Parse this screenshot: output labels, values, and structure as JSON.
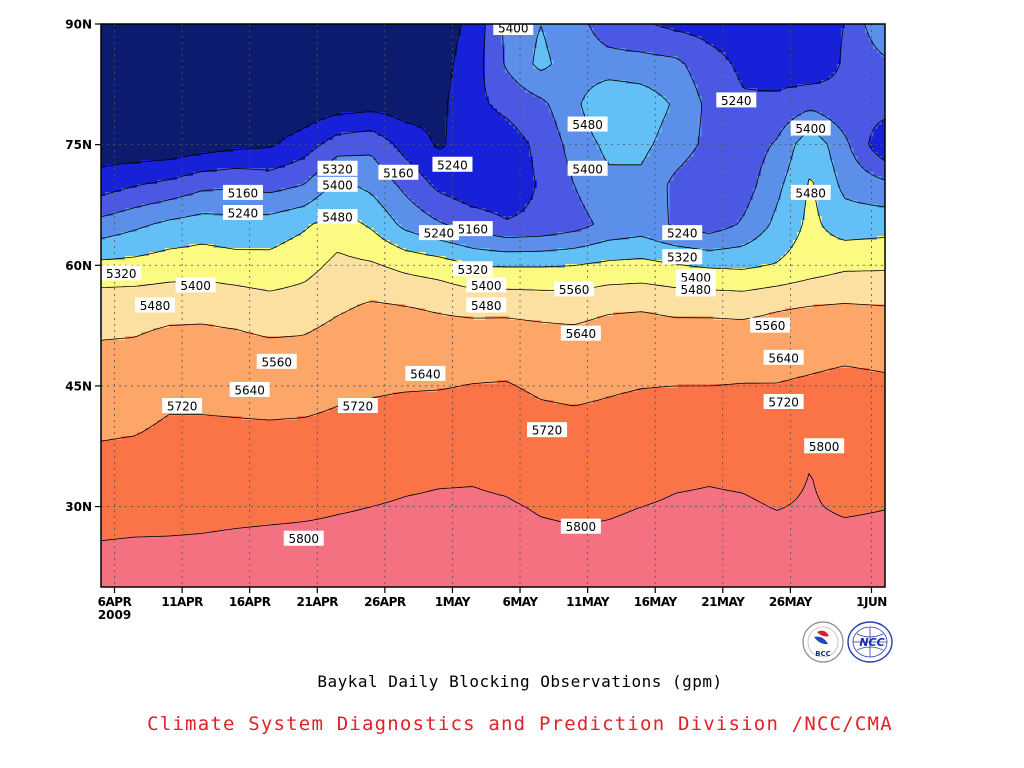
{
  "chart_data": {
    "type": "heatmap",
    "title": "Baykal Daily Blocking Observations (gpm)",
    "xlabel": "",
    "ylabel": "",
    "x_axis": {
      "ticks": [
        "6APR",
        "11APR",
        "16APR",
        "21APR",
        "26APR",
        "1MAY",
        "6MAY",
        "11MAY",
        "16MAY",
        "21MAY",
        "26MAY",
        "1JUN"
      ],
      "tick_days": [
        0,
        5,
        10,
        15,
        20,
        25,
        30,
        35,
        40,
        45,
        50,
        56
      ],
      "year_label": "2009",
      "range_days": [
        -1,
        57
      ]
    },
    "y_axis": {
      "ticks": [
        "30N",
        "45N",
        "60N",
        "75N",
        "90N"
      ],
      "tick_values": [
        30,
        45,
        60,
        75,
        90
      ],
      "range": [
        20,
        90
      ]
    },
    "grid": "dotted",
    "contour_levels": [
      5160,
      5240,
      5320,
      5400,
      5480,
      5560,
      5640,
      5720,
      5800
    ],
    "level_colors": [
      "#0d1b6e",
      "#1721d8",
      "#4a58e4",
      "#5b8fea",
      "#62c0f7",
      "#fbfb82",
      "#fce0a2",
      "#fca66a",
      "#fb7447",
      "#f47181"
    ],
    "field_days": [
      -1,
      1.5,
      4,
      6.5,
      9,
      11.5,
      14,
      16.5,
      19,
      21.5,
      24,
      26.5,
      29,
      31.5,
      34,
      36.5,
      39,
      41.5,
      44,
      46.5,
      49,
      51.5,
      54,
      57
    ],
    "field_lats": [
      20,
      25,
      30,
      35,
      40,
      45,
      50,
      55,
      60,
      65,
      70,
      75,
      80,
      85,
      90
    ],
    "field": [
      [
        5835,
        5835,
        5835,
        5835,
        5835,
        5835,
        5835,
        5835,
        5835,
        5835,
        5835,
        5835,
        5835,
        5835,
        5835,
        5835,
        5835,
        5835,
        5835,
        5835,
        5835,
        5835,
        5835,
        5835
      ],
      [
        5805,
        5808,
        5808,
        5810,
        5815,
        5819,
        5820,
        5820,
        5821,
        5822,
        5823,
        5821,
        5819,
        5812,
        5808,
        5810,
        5814,
        5815,
        5816,
        5819,
        5818,
        5820,
        5821,
        5822
      ],
      [
        5772,
        5775,
        5778,
        5780,
        5782,
        5784,
        5788,
        5795,
        5800,
        5805,
        5808,
        5808,
        5805,
        5796,
        5793,
        5795,
        5800,
        5806,
        5808,
        5806,
        5798,
        5805,
        5792,
        5798
      ],
      [
        5740,
        5745,
        5748,
        5755,
        5758,
        5760,
        5765,
        5770,
        5775,
        5785,
        5790,
        5792,
        5785,
        5768,
        5762,
        5768,
        5775,
        5788,
        5792,
        5788,
        5780,
        5800,
        5770,
        5778
      ],
      [
        5708,
        5712,
        5728,
        5728,
        5726,
        5725,
        5728,
        5735,
        5738,
        5748,
        5755,
        5760,
        5755,
        5740,
        5736,
        5740,
        5748,
        5752,
        5752,
        5752,
        5750,
        5758,
        5750,
        5755
      ],
      [
        5678,
        5680,
        5700,
        5700,
        5698,
        5692,
        5690,
        5705,
        5712,
        5715,
        5716,
        5722,
        5724,
        5710,
        5704,
        5712,
        5718,
        5720,
        5720,
        5722,
        5722,
        5728,
        5735,
        5730
      ],
      [
        5645,
        5648,
        5665,
        5666,
        5662,
        5652,
        5654,
        5675,
        5688,
        5685,
        5680,
        5688,
        5690,
        5680,
        5678,
        5692,
        5696,
        5686,
        5690,
        5692,
        5694,
        5700,
        5705,
        5700
      ],
      [
        5608,
        5610,
        5615,
        5618,
        5608,
        5590,
        5600,
        5628,
        5648,
        5640,
        5630,
        5618,
        5618,
        5612,
        5605,
        5625,
        5630,
        5620,
        5618,
        5612,
        5630,
        5640,
        5645,
        5640
      ],
      [
        5500,
        5505,
        5520,
        5525,
        5512,
        5505,
        5530,
        5580,
        5570,
        5540,
        5520,
        5480,
        5475,
        5475,
        5480,
        5498,
        5505,
        5485,
        5470,
        5465,
        5485,
        5520,
        5545,
        5548
      ],
      [
        5350,
        5385,
        5420,
        5440,
        5430,
        5440,
        5470,
        5520,
        5470,
        5380,
        5330,
        5290,
        5250,
        5260,
        5290,
        5340,
        5360,
        5310,
        5280,
        5330,
        5420,
        5500,
        5440,
        5450
      ],
      [
        5200,
        5235,
        5260,
        5300,
        5310,
        5290,
        5320,
        5420,
        5380,
        5300,
        5220,
        5180,
        5180,
        5250,
        5320,
        5380,
        5380,
        5300,
        5260,
        5280,
        5380,
        5490,
        5380,
        5340
      ],
      [
        5110,
        5100,
        5100,
        5120,
        5140,
        5150,
        5200,
        5280,
        5300,
        5210,
        5150,
        5200,
        5200,
        5260,
        5350,
        5420,
        5420,
        5360,
        5300,
        5270,
        5330,
        5460,
        5340,
        5170
      ],
      [
        5060,
        5060,
        5060,
        5070,
        5080,
        5090,
        5100,
        5120,
        5130,
        5120,
        5140,
        5220,
        5260,
        5300,
        5380,
        5480,
        5450,
        5390,
        5300,
        5250,
        5260,
        5300,
        5260,
        5280
      ],
      [
        5060,
        5060,
        5060,
        5060,
        5060,
        5060,
        5060,
        5060,
        5060,
        5060,
        5130,
        5200,
        5330,
        5420,
        5360,
        5350,
        5350,
        5340,
        5270,
        5225,
        5200,
        5180,
        5250,
        5300
      ],
      [
        5060,
        5060,
        5060,
        5060,
        5060,
        5060,
        5060,
        5060,
        5060,
        5060,
        5120,
        5180,
        5340,
        5400,
        5350,
        5280,
        5250,
        5220,
        5210,
        5200,
        5180,
        5200,
        5240,
        5400
      ]
    ],
    "contour_labels": [
      {
        "text": "5400",
        "day": 29.5,
        "lat": 89.5
      },
      {
        "text": "5240",
        "day": 46,
        "lat": 80.5
      },
      {
        "text": "5480",
        "day": 35,
        "lat": 77.5
      },
      {
        "text": "5400",
        "day": 51.5,
        "lat": 77
      },
      {
        "text": "5320",
        "day": 16.5,
        "lat": 72
      },
      {
        "text": "5400",
        "day": 16.5,
        "lat": 70
      },
      {
        "text": "5160",
        "day": 21,
        "lat": 71.5
      },
      {
        "text": "5240",
        "day": 25,
        "lat": 72.5
      },
      {
        "text": "5400",
        "day": 35,
        "lat": 72
      },
      {
        "text": "5160",
        "day": 9.5,
        "lat": 69
      },
      {
        "text": "5480",
        "day": 51.5,
        "lat": 69
      },
      {
        "text": "5240",
        "day": 9.5,
        "lat": 66.5
      },
      {
        "text": "5480",
        "day": 16.5,
        "lat": 66
      },
      {
        "text": "5160",
        "day": 26.5,
        "lat": 64.5
      },
      {
        "text": "5240",
        "day": 24,
        "lat": 64
      },
      {
        "text": "5240",
        "day": 42,
        "lat": 64
      },
      {
        "text": "5320",
        "day": 42,
        "lat": 61
      },
      {
        "text": "5320",
        "day": 0.5,
        "lat": 59
      },
      {
        "text": "5320",
        "day": 26.5,
        "lat": 59.5
      },
      {
        "text": "5400",
        "day": 43,
        "lat": 58.5
      },
      {
        "text": "5400",
        "day": 6,
        "lat": 57.5
      },
      {
        "text": "5400",
        "day": 27.5,
        "lat": 57.5
      },
      {
        "text": "5560",
        "day": 34,
        "lat": 57
      },
      {
        "text": "5480",
        "day": 43,
        "lat": 57
      },
      {
        "text": "5480",
        "day": 3,
        "lat": 55
      },
      {
        "text": "5480",
        "day": 27.5,
        "lat": 55
      },
      {
        "text": "5560",
        "day": 48.5,
        "lat": 52.5
      },
      {
        "text": "5640",
        "day": 34.5,
        "lat": 51.5
      },
      {
        "text": "5560",
        "day": 12,
        "lat": 48
      },
      {
        "text": "5640",
        "day": 49.5,
        "lat": 48.5
      },
      {
        "text": "5640",
        "day": 23,
        "lat": 46.5
      },
      {
        "text": "5640",
        "day": 10,
        "lat": 44.5
      },
      {
        "text": "5720",
        "day": 49.5,
        "lat": 43
      },
      {
        "text": "5720",
        "day": 5,
        "lat": 42.5
      },
      {
        "text": "5720",
        "day": 18,
        "lat": 42.5
      },
      {
        "text": "5720",
        "day": 32,
        "lat": 39.5
      },
      {
        "text": "5800",
        "day": 52.5,
        "lat": 37.5
      },
      {
        "text": "5800",
        "day": 34.5,
        "lat": 27.5
      },
      {
        "text": "5800",
        "day": 14,
        "lat": 26
      }
    ]
  },
  "credit": "Climate System Diagnostics and Prediction Division /NCC/CMA",
  "logos": {
    "left": "BCC",
    "right": "NCC"
  }
}
